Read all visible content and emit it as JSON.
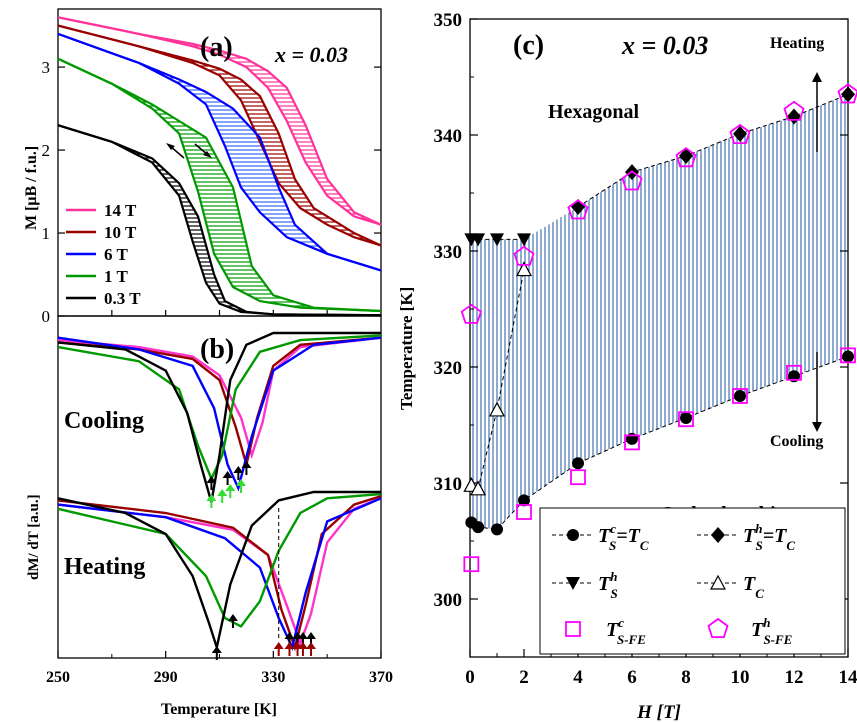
{
  "chart_data": [
    {
      "panel": "(a)",
      "type": "line",
      "annotation": "x = 0.03",
      "xlabel": "",
      "ylabel": "M [μB / f.u.]",
      "xlim": [
        250,
        370
      ],
      "ylim": [
        0,
        3.7
      ],
      "yticks": [
        "0",
        "1",
        "2",
        "3"
      ],
      "legend_placement": "bottom-left",
      "series": [
        {
          "name": "14 T",
          "color": "#ff3399",
          "cooling": {
            "x": [
              250,
              280,
              300,
              310,
              320,
              328,
              335,
              342,
              350,
              360,
              370
            ],
            "y": [
              3.6,
              3.4,
              3.25,
              3.15,
              3.0,
              2.75,
              2.35,
              1.85,
              1.45,
              1.2,
              1.1
            ]
          },
          "heating": {
            "x": [
              250,
              280,
              300,
              310,
              320,
              328,
              335,
              342,
              350,
              360,
              370
            ],
            "y": [
              3.6,
              3.4,
              3.28,
              3.2,
              3.1,
              2.95,
              2.75,
              2.3,
              1.65,
              1.25,
              1.1
            ]
          }
        },
        {
          "name": "10 T",
          "color": "#990000",
          "cooling": {
            "x": [
              250,
              280,
              300,
              310,
              318,
              325,
              332,
              340,
              350,
              360,
              370
            ],
            "y": [
              3.5,
              3.25,
              3.05,
              2.9,
              2.6,
              2.1,
              1.6,
              1.3,
              1.1,
              0.95,
              0.85
            ]
          },
          "heating": {
            "x": [
              250,
              280,
              300,
              310,
              318,
              325,
              332,
              338,
              345,
              360,
              370
            ],
            "y": [
              3.5,
              3.25,
              3.08,
              2.98,
              2.85,
              2.65,
              2.2,
              1.65,
              1.3,
              1.0,
              0.85
            ]
          }
        },
        {
          "name": "6 T",
          "color": "#0000ff",
          "cooling": {
            "x": [
              250,
              280,
              295,
              305,
              312,
              318,
              325,
              335,
              350,
              370
            ],
            "y": [
              3.4,
              3.05,
              2.8,
              2.55,
              2.05,
              1.55,
              1.25,
              0.95,
              0.75,
              0.55
            ]
          },
          "heating": {
            "x": [
              250,
              280,
              295,
              305,
              315,
              325,
              332,
              338,
              350,
              370
            ],
            "y": [
              3.4,
              3.05,
              2.85,
              2.7,
              2.5,
              2.15,
              1.55,
              1.1,
              0.75,
              0.55
            ]
          }
        },
        {
          "name": "1 T",
          "color": "#009900",
          "cooling": {
            "x": [
              250,
              270,
              285,
              295,
              302,
              308,
              315,
              325,
              340,
              370
            ],
            "y": [
              3.1,
              2.8,
              2.5,
              2.2,
              1.5,
              0.75,
              0.35,
              0.18,
              0.1,
              0.06
            ]
          },
          "heating": {
            "x": [
              250,
              270,
              285,
              295,
              305,
              315,
              322,
              330,
              345,
              370
            ],
            "y": [
              3.1,
              2.8,
              2.55,
              2.35,
              2.15,
              1.55,
              0.6,
              0.25,
              0.1,
              0.06
            ]
          }
        },
        {
          "name": "0.3 T",
          "color": "#000000",
          "cooling": {
            "x": [
              250,
              270,
              285,
              295,
              300,
              305,
              310,
              318,
              330,
              370
            ],
            "y": [
              2.3,
              2.1,
              1.85,
              1.45,
              0.9,
              0.4,
              0.15,
              0.05,
              0.02,
              0.01
            ]
          },
          "heating": {
            "x": [
              250,
              270,
              285,
              295,
              302,
              308,
              312,
              320,
              330,
              370
            ],
            "y": [
              2.3,
              2.1,
              1.9,
              1.6,
              1.2,
              0.5,
              0.18,
              0.05,
              0.02,
              0.01
            ]
          }
        }
      ]
    },
    {
      "panel": "(b)",
      "type": "line",
      "xlabel": "Temperature [K]",
      "ylabel": "dM/ dT [a.u.]",
      "xlim": [
        250,
        370
      ],
      "xticks": [
        "250",
        "290",
        "330",
        "370"
      ],
      "labels": {
        "cooling": "Cooling",
        "heating": "Heating"
      },
      "cooling_curves": [
        {
          "field": "14 T",
          "color": "#ff33cc",
          "x": [
            250,
            280,
            300,
            310,
            318,
            322,
            326,
            330,
            340,
            370
          ],
          "y": [
            -0.15,
            -0.3,
            -0.5,
            -0.9,
            -1.8,
            -2.6,
            -1.9,
            -0.8,
            -0.3,
            -0.1
          ]
        },
        {
          "field": "10 T",
          "color": "#990000",
          "x": [
            250,
            280,
            300,
            310,
            316,
            320,
            324,
            330,
            340,
            370
          ],
          "y": [
            -0.2,
            -0.35,
            -0.55,
            -1.0,
            -2.0,
            -2.8,
            -1.8,
            -0.7,
            -0.25,
            -0.1
          ]
        },
        {
          "field": "6 T",
          "color": "#0000ff",
          "x": [
            250,
            280,
            300,
            308,
            313,
            317,
            322,
            330,
            345,
            370
          ],
          "y": [
            -0.1,
            -0.35,
            -0.7,
            -1.6,
            -2.8,
            -3.3,
            -2.2,
            -0.8,
            -0.25,
            -0.1
          ]
        },
        {
          "field": "1 T",
          "color": "#009900",
          "x": [
            250,
            280,
            295,
            302,
            307,
            311,
            316,
            325,
            340,
            370
          ],
          "y": [
            -0.3,
            -0.6,
            -1.2,
            -2.4,
            -3.1,
            -2.6,
            -1.2,
            -0.4,
            -0.15,
            -0.05
          ]
        },
        {
          "field": "0.3 T",
          "color": "#000000",
          "x": [
            250,
            275,
            290,
            298,
            303,
            307,
            310,
            314,
            320,
            330,
            370
          ],
          "y": [
            -0.2,
            -0.35,
            -0.8,
            -1.7,
            -2.8,
            -3.6,
            -2.6,
            -1.0,
            -0.25,
            0.0,
            0.0
          ]
        }
      ],
      "heating_curves": [
        {
          "field": "14 T",
          "color": "#ff33cc",
          "x": [
            250,
            290,
            315,
            328,
            335,
            340,
            344,
            350,
            360,
            370
          ],
          "y": [
            -0.3,
            -0.6,
            -0.9,
            -1.5,
            -2.7,
            -3.6,
            -2.9,
            -1.2,
            -0.4,
            -0.15
          ]
        },
        {
          "field": "10 T",
          "color": "#990000",
          "x": [
            250,
            290,
            315,
            328,
            333,
            338,
            342,
            348,
            360,
            370
          ],
          "y": [
            -0.2,
            -0.5,
            -0.85,
            -1.5,
            -2.8,
            -3.7,
            -2.7,
            -1.0,
            -0.3,
            -0.1
          ]
        },
        {
          "field": "6 T",
          "color": "#0000ff",
          "x": [
            250,
            290,
            312,
            325,
            332,
            337,
            342,
            350,
            370
          ],
          "y": [
            -0.3,
            -0.6,
            -1.1,
            -1.8,
            -3.0,
            -3.7,
            -2.4,
            -0.7,
            -0.15
          ]
        },
        {
          "field": "1 T",
          "color": "#009900",
          "x": [
            250,
            290,
            305,
            312,
            318,
            325,
            332,
            340,
            350,
            370
          ],
          "y": [
            -0.4,
            -1.0,
            -2.0,
            -3.0,
            -3.2,
            -2.6,
            -1.4,
            -0.5,
            -0.15,
            -0.05
          ]
        },
        {
          "field": "0.3 T",
          "color": "#000000",
          "x": [
            250,
            275,
            290,
            300,
            306,
            309,
            314,
            322,
            332,
            345,
            370
          ],
          "y": [
            -0.15,
            -0.5,
            -1.0,
            -2.0,
            -3.1,
            -3.7,
            -2.2,
            -0.8,
            -0.2,
            0.0,
            0.0
          ]
        }
      ],
      "arrow_temperatures": {
        "cooling_black": [
          307,
          313,
          317,
          320
        ],
        "cooling_green": [
          307,
          311,
          314,
          318
        ],
        "heating_black": [
          309,
          315,
          336,
          339,
          341,
          344
        ],
        "heating_dark_red": [
          332,
          336,
          339,
          341,
          344
        ]
      }
    },
    {
      "panel": "(c)",
      "type": "scatter",
      "annotation": "x = 0.03",
      "xlabel": "H [T]",
      "ylabel": "Temperature [K]",
      "xlim": [
        0,
        14
      ],
      "ylim": [
        295,
        350
      ],
      "xticks": [
        "0",
        "2",
        "4",
        "6",
        "8",
        "10",
        "12",
        "14"
      ],
      "yticks": [
        "300",
        "310",
        "320",
        "330",
        "340",
        "350"
      ],
      "region_labels": {
        "upper": "Hexagonal",
        "lower": "Orthorhombic",
        "heating": "Heating",
        "cooling": "Cooling"
      },
      "legend_placement": "bottom-right",
      "series": [
        {
          "name": "TSc=TC",
          "marker": "circle-filled",
          "color": "#000000",
          "x": [
            0.05,
            0.3,
            1,
            2,
            4,
            6,
            8,
            10,
            12,
            14
          ],
          "y": [
            306.6,
            306.2,
            306.0,
            308.5,
            311.7,
            313.8,
            315.6,
            317.5,
            319.2,
            320.9
          ]
        },
        {
          "name": "TSh=TC",
          "marker": "diamond-filled",
          "color": "#000000",
          "x": [
            4,
            6,
            8,
            10,
            12,
            14
          ],
          "y": [
            333.8,
            336.8,
            338.2,
            340.1,
            341.6,
            343.5
          ]
        },
        {
          "name": "TSh",
          "marker": "triangle-down-filled",
          "color": "#000000",
          "x": [
            0.05,
            0.3,
            1,
            2
          ],
          "y": [
            331.0,
            331.0,
            331.0,
            331.0
          ]
        },
        {
          "name": "TC",
          "marker": "triangle-up-open",
          "color": "#000000",
          "x": [
            0.05,
            0.3,
            1,
            2
          ],
          "y": [
            309.8,
            309.5,
            316.3,
            328.4
          ]
        },
        {
          "name": "Tc S-FE",
          "marker": "square-open",
          "color": "#ff00ff",
          "x": [
            0.05,
            2,
            4,
            6,
            8,
            10,
            12,
            14
          ],
          "y": [
            303.0,
            307.5,
            310.5,
            313.5,
            315.5,
            317.5,
            319.5,
            321.0
          ]
        },
        {
          "name": "Th S-FE",
          "marker": "pentagon-open",
          "color": "#ff00ff",
          "x": [
            0.05,
            2,
            4,
            6,
            8,
            10,
            12,
            14
          ],
          "y": [
            324.5,
            329.5,
            333.5,
            336.0,
            338.0,
            340.0,
            342.0,
            343.5
          ]
        }
      ],
      "legend_items": [
        {
          "prefix": "T",
          "sup": "c",
          "sub": "S",
          "suffix": "=T",
          "suffix_sub": "C"
        },
        {
          "prefix": "T",
          "sup": "h",
          "sub": "S",
          "suffix": "=T",
          "suffix_sub": "C"
        },
        {
          "prefix": "T",
          "sup": "h",
          "sub": "S",
          "suffix": "",
          "suffix_sub": ""
        },
        {
          "prefix": "T",
          "sup": "",
          "sub": "C",
          "suffix": "",
          "suffix_sub": ""
        },
        {
          "prefix": "T",
          "sup": "c",
          "sub": "S-FE",
          "suffix": "",
          "suffix_sub": ""
        },
        {
          "prefix": "T",
          "sup": "h",
          "sub": "S-FE",
          "suffix": "",
          "suffix_sub": ""
        }
      ]
    }
  ]
}
